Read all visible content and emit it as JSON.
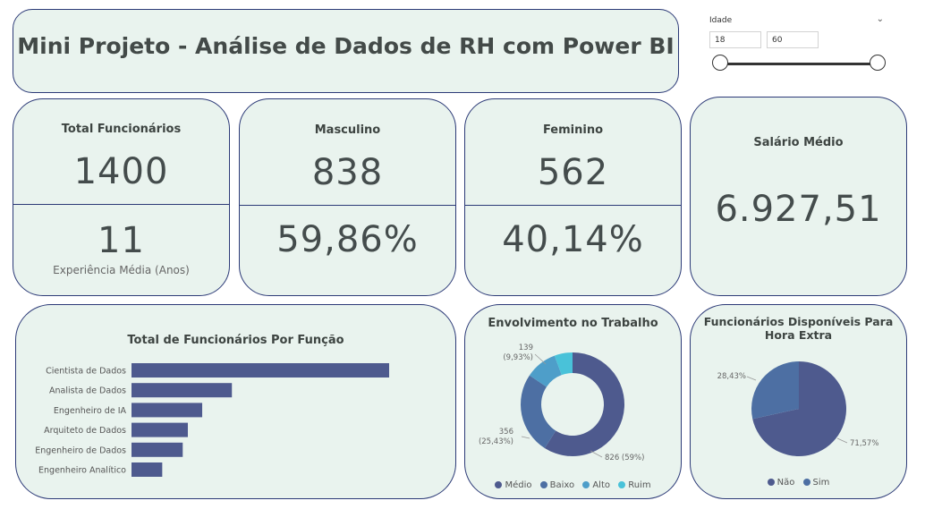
{
  "header": {
    "title": "Mini Projeto - Análise de Dados de RH com Power BI"
  },
  "slicer": {
    "label": "Idade",
    "min_value": "18",
    "max_value": "60"
  },
  "kpis": {
    "total": {
      "label": "Total Funcionários",
      "value": "1400",
      "experience_value": "11",
      "experience_label": "Experiência Média (Anos)"
    },
    "male": {
      "label": "Masculino",
      "value": "838",
      "percent": "59,86%"
    },
    "female": {
      "label": "Feminino",
      "value": "562",
      "percent": "40,14%"
    },
    "salary": {
      "label": "Salário Médio",
      "value": "6.927,51"
    }
  },
  "colors": {
    "card_bg": "#e9f3ee",
    "border": "#2c3a77",
    "bar": "#4e5a8e",
    "medio": "#4e5a8e",
    "baixo": "#4d6fa3",
    "alto": "#4e9ec9",
    "ruim": "#49c2d9",
    "nao": "#4e5a8e",
    "sim": "#4d6fa3"
  },
  "chart_data": [
    {
      "type": "bar",
      "title": "Total de Funcionários Por Função",
      "categories": [
        "Cientista de Dados",
        "Analista de Dados",
        "Engenheiro de IA",
        "Arquiteto de Dados",
        "Engenheiro de Dados",
        "Engenheiro Analítico"
      ],
      "values": [
        503,
        196,
        138,
        110,
        100,
        60
      ]
    },
    {
      "type": "pie",
      "title": "Envolvimento no Trabalho",
      "categories": [
        "Médio",
        "Baixo",
        "Alto",
        "Ruim"
      ],
      "values": [
        826,
        356,
        139,
        79
      ],
      "data_labels": [
        "826 (59%)",
        "356\n(25,43%)",
        "139\n(9,93%)",
        ""
      ]
    },
    {
      "type": "pie",
      "title": "Funcionários Disponíveis Para Hora Extra",
      "categories": [
        "Não",
        "Sim"
      ],
      "values": [
        71.57,
        28.43
      ],
      "data_labels": [
        "71,57%",
        "28,43%"
      ]
    }
  ]
}
